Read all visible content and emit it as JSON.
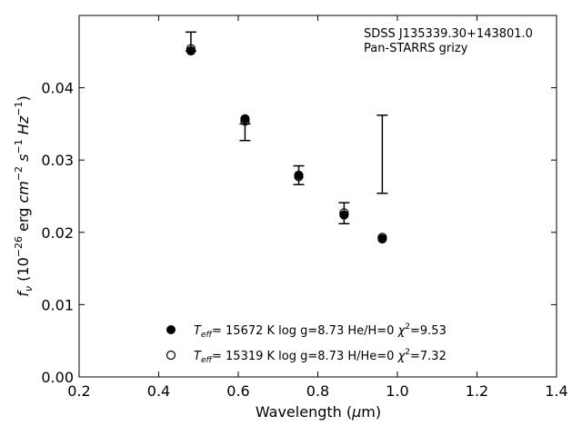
{
  "chart_data": {
    "type": "scatter",
    "xlabel": "Wavelength (μm)",
    "ylabel": "fν (10⁻²⁶ erg cm⁻² s⁻¹ Hz⁻¹)",
    "xlim": [
      0.2,
      1.4
    ],
    "ylim": [
      0.0,
      0.05
    ],
    "x_ticks": [
      "0.2",
      "0.4",
      "0.6",
      "0.8",
      "1.0",
      "1.2",
      "1.4"
    ],
    "y_ticks": [
      "0.00",
      "0.01",
      "0.02",
      "0.03",
      "0.04"
    ],
    "annotations": [
      "SDSS J135339.30+143801.0",
      "Pan-STARRS grizy"
    ],
    "observed": {
      "x": [
        0.481,
        0.617,
        0.752,
        0.866,
        0.962
      ],
      "y_low": [
        0.0451,
        0.0327,
        0.0266,
        0.0212,
        0.0254
      ],
      "y_high": [
        0.0477,
        0.035,
        0.0292,
        0.0241,
        0.0362
      ]
    },
    "series": [
      {
        "legend": "T_eff= 15672 K  log g=8.73  He/H=0  χ²=9.53",
        "marker": "filled-circle",
        "x": [
          0.481,
          0.617,
          0.752,
          0.866,
          0.962
        ],
        "y": [
          0.0451,
          0.0357,
          0.0279,
          0.0224,
          0.0191
        ]
      },
      {
        "legend": "T_eff= 15319 K  log g=8.73  H/He=0  χ²=7.32",
        "marker": "open-circle",
        "x": [
          0.481,
          0.617,
          0.752,
          0.866,
          0.962
        ],
        "y": [
          0.0454,
          0.0354,
          0.0277,
          0.0227,
          0.0193
        ]
      }
    ],
    "legend_position": "lower-center"
  }
}
